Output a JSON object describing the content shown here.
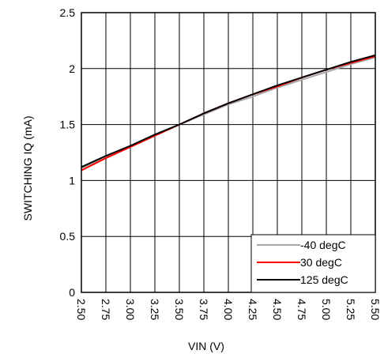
{
  "chart_data": {
    "type": "line",
    "xlabel": "VIN (V)",
    "ylabel": "SWITCHING IQ  (mA)",
    "xlim": [
      2.5,
      5.5
    ],
    "ylim": [
      0,
      2.5
    ],
    "x_ticks": [
      "2.50",
      "2.75",
      "3.00",
      "3.25",
      "3.50",
      "3.75",
      "4.00",
      "4.25",
      "4.50",
      "4.75",
      "5.00",
      "5.25",
      "5.50"
    ],
    "y_ticks": [
      "0",
      "0.5",
      "1",
      "1.5",
      "2",
      "2.5"
    ],
    "grid": true,
    "legend_position": "bottom-right",
    "series": [
      {
        "name": "-40 degC",
        "color": "#a6a6a6",
        "x": [
          2.5,
          2.75,
          3.0,
          3.25,
          3.5,
          3.75,
          4.0,
          4.25,
          4.5,
          4.75,
          5.0,
          5.25,
          5.5
        ],
        "y": [
          1.11,
          1.21,
          1.3,
          1.4,
          1.5,
          1.59,
          1.68,
          1.75,
          1.83,
          1.9,
          1.97,
          2.04,
          2.1
        ]
      },
      {
        "name": "30 degC",
        "color": "#ff0000",
        "x": [
          2.5,
          2.75,
          3.0,
          3.25,
          3.5,
          3.75,
          4.0,
          4.25,
          4.5,
          4.75,
          5.0,
          5.25,
          5.5
        ],
        "y": [
          1.09,
          1.2,
          1.3,
          1.4,
          1.5,
          1.6,
          1.69,
          1.77,
          1.84,
          1.92,
          1.99,
          2.05,
          2.11
        ]
      },
      {
        "name": "125 degC",
        "color": "#000000",
        "x": [
          2.5,
          2.75,
          3.0,
          3.25,
          3.5,
          3.75,
          4.0,
          4.25,
          4.5,
          4.75,
          5.0,
          5.25,
          5.5
        ],
        "y": [
          1.12,
          1.22,
          1.31,
          1.41,
          1.5,
          1.6,
          1.69,
          1.77,
          1.85,
          1.92,
          1.99,
          2.06,
          2.12
        ]
      }
    ]
  }
}
